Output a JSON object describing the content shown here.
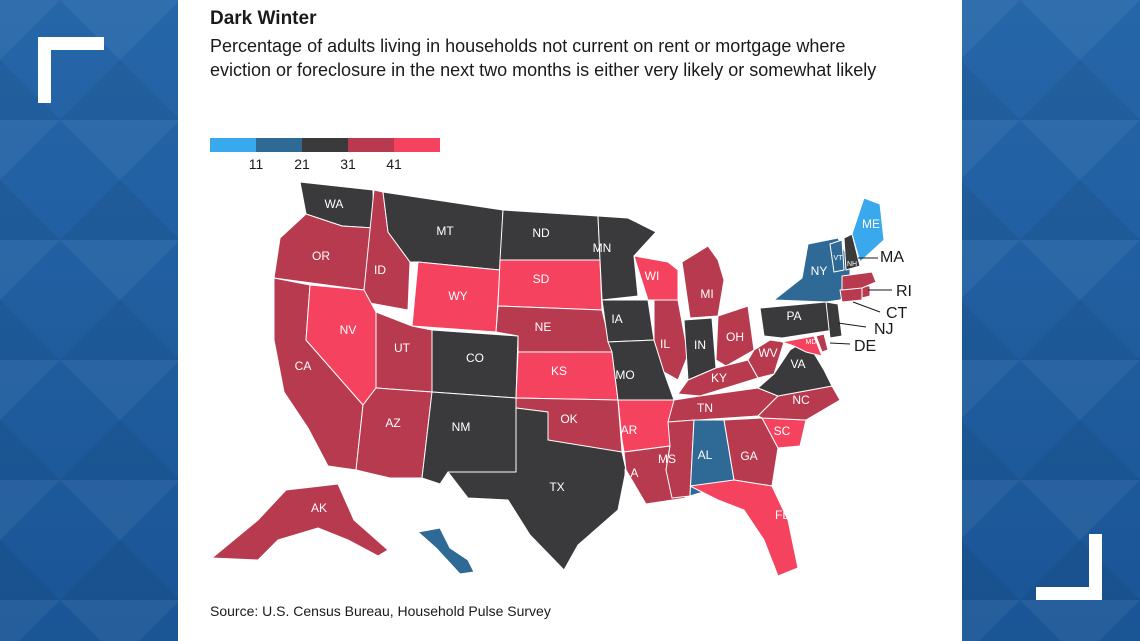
{
  "title": "Dark Winter",
  "subtitle": "Percentage of adults living in households not current on rent or mortgage where eviction or foreclosure in the next two months is either very likely or somewhat likely",
  "legend": {
    "colors": [
      "#3aa8ec",
      "#2e6a95",
      "#3a3a3c",
      "#b83a4e",
      "#f5435f"
    ],
    "labels": [
      "11",
      "21",
      "31",
      "41"
    ]
  },
  "source": "Source: U.S. Census Bureau, Household Pulse Survey",
  "states": [
    {
      "abbr": "WA",
      "bin": 2
    },
    {
      "abbr": "OR",
      "bin": 3
    },
    {
      "abbr": "CA",
      "bin": 3
    },
    {
      "abbr": "ID",
      "bin": 3
    },
    {
      "abbr": "NV",
      "bin": 4
    },
    {
      "abbr": "MT",
      "bin": 2
    },
    {
      "abbr": "WY",
      "bin": 4
    },
    {
      "abbr": "UT",
      "bin": 3
    },
    {
      "abbr": "AZ",
      "bin": 3
    },
    {
      "abbr": "CO",
      "bin": 2
    },
    {
      "abbr": "NM",
      "bin": 2
    },
    {
      "abbr": "ND",
      "bin": 2
    },
    {
      "abbr": "SD",
      "bin": 4
    },
    {
      "abbr": "NE",
      "bin": 3
    },
    {
      "abbr": "KS",
      "bin": 4
    },
    {
      "abbr": "OK",
      "bin": 3
    },
    {
      "abbr": "TX",
      "bin": 2
    },
    {
      "abbr": "MN",
      "bin": 2
    },
    {
      "abbr": "IA",
      "bin": 2
    },
    {
      "abbr": "MO",
      "bin": 2
    },
    {
      "abbr": "AR",
      "bin": 4
    },
    {
      "abbr": "LA",
      "bin": 3
    },
    {
      "abbr": "WI",
      "bin": 4
    },
    {
      "abbr": "IL",
      "bin": 3
    },
    {
      "abbr": "MI",
      "bin": 3
    },
    {
      "abbr": "IN",
      "bin": 2
    },
    {
      "abbr": "OH",
      "bin": 3
    },
    {
      "abbr": "KY",
      "bin": 3
    },
    {
      "abbr": "TN",
      "bin": 3
    },
    {
      "abbr": "MS",
      "bin": 3
    },
    {
      "abbr": "AL",
      "bin": 1
    },
    {
      "abbr": "GA",
      "bin": 3
    },
    {
      "abbr": "FL",
      "bin": 4
    },
    {
      "abbr": "SC",
      "bin": 4
    },
    {
      "abbr": "NC",
      "bin": 3
    },
    {
      "abbr": "VA",
      "bin": 2
    },
    {
      "abbr": "WV",
      "bin": 3
    },
    {
      "abbr": "MD",
      "bin": 4
    },
    {
      "abbr": "DE",
      "bin": 3
    },
    {
      "abbr": "PA",
      "bin": 2
    },
    {
      "abbr": "NJ",
      "bin": 2
    },
    {
      "abbr": "NY",
      "bin": 1
    },
    {
      "abbr": "CT",
      "bin": 3
    },
    {
      "abbr": "RI",
      "bin": 3
    },
    {
      "abbr": "MA",
      "bin": 3
    },
    {
      "abbr": "VT",
      "bin": 1
    },
    {
      "abbr": "NH",
      "bin": 2
    },
    {
      "abbr": "ME",
      "bin": 0
    },
    {
      "abbr": "AK",
      "bin": 3
    },
    {
      "abbr": "HI",
      "bin": 1
    }
  ]
}
